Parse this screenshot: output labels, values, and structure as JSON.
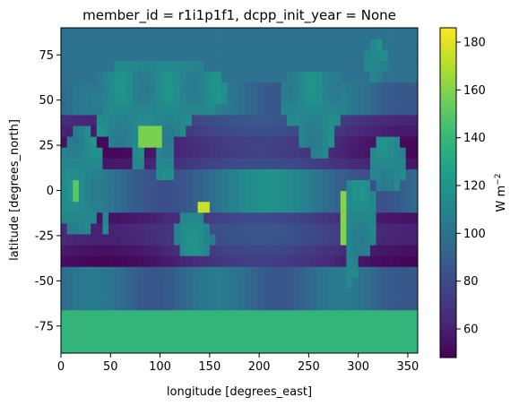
{
  "chart_data": {
    "type": "heatmap",
    "title": "member_id = r1i1p1f1, dcpp_init_year = None",
    "xlabel": "longitude [degrees_east]",
    "ylabel": "latitude [degrees_north]",
    "xlim": [
      0,
      360
    ],
    "ylim": [
      -90,
      90
    ],
    "xticks": [
      0,
      50,
      100,
      150,
      200,
      250,
      300,
      350
    ],
    "yticks": [
      -75,
      -50,
      -25,
      0,
      25,
      50,
      75
    ],
    "grid": false,
    "colormap": "viridis",
    "colorbar": {
      "label": "W m",
      "label_superscript": "−2",
      "range": [
        48,
        186
      ],
      "ticks": [
        60,
        80,
        100,
        120,
        140,
        160,
        180
      ]
    },
    "field_description": "Global gridded radiative flux field (W m-2) with low values (~50-80) over mid-latitude and subtropical oceans, values ~100-130 over most land, and highs (~150-185) over tropical mountains and the Andes/Himalaya",
    "colors": {
      "viridis": [
        "#440154",
        "#482878",
        "#3e4989",
        "#31688e",
        "#26828e",
        "#1f9e89",
        "#35b779",
        "#6ece58",
        "#b5de2b",
        "#fde725"
      ]
    }
  }
}
